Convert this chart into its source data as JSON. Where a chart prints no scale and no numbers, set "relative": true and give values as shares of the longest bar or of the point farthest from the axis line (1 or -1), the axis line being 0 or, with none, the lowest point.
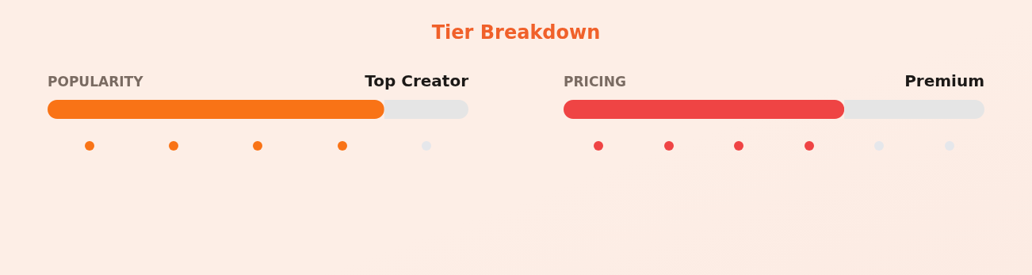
{
  "chart_data": [
    {
      "type": "bar",
      "title": "Tier Breakdown",
      "orientation": "horizontal",
      "stacked": true,
      "relative": true,
      "categories": [
        "POPULARITY"
      ],
      "annotations": [
        "Top Creator"
      ],
      "series": [
        {
          "color": "#f97316",
          "values": [
            0.8
          ]
        },
        {
          "color": "#e5e5e5",
          "values": [
            0.2
          ]
        }
      ]
    },
    {
      "type": "bar",
      "orientation": "horizontal",
      "stacked": true,
      "relative": true,
      "categories": [
        "PRICING"
      ],
      "annotations": [
        "Premium"
      ],
      "series": [
        {
          "color": "#ef4444",
          "values": [
            0.667
          ]
        },
        {
          "color": "#e5e5e5",
          "values": [
            0.333
          ]
        }
      ]
    }
  ]
}
